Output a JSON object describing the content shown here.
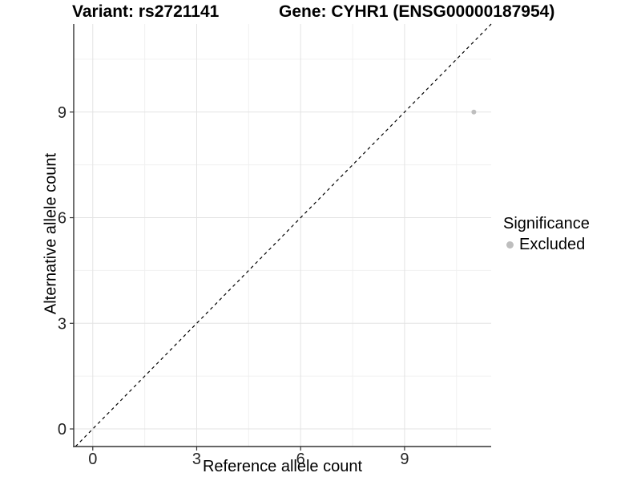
{
  "header": {
    "variant_title": "Variant: rs2721141",
    "gene_title": "Gene: CYHR1 (ENSG00000187954)"
  },
  "legend": {
    "title": "Significance",
    "items": [
      {
        "label": "Excluded",
        "color": "#bebebe"
      }
    ]
  },
  "chart_data": {
    "type": "scatter",
    "title": "",
    "xlabel": "Reference allele count",
    "ylabel": "Alternative allele count",
    "xlim": [
      -0.55,
      11.5
    ],
    "ylim": [
      -0.5,
      11.5
    ],
    "xticks": [
      0,
      3,
      6,
      9
    ],
    "yticks": [
      0,
      3,
      6,
      9
    ],
    "xticks_minor": [
      1.5,
      4.5,
      7.5,
      10.5
    ],
    "yticks_minor": [
      1.5,
      4.5,
      7.5,
      10.5
    ],
    "grid": "major+minor",
    "legend_position": "right",
    "series": [
      {
        "name": "Excluded",
        "color": "#bebebe",
        "points": [
          {
            "x": 11,
            "y": 9
          }
        ]
      }
    ],
    "identity_line": {
      "style": "dashed",
      "from": [
        -0.5,
        -0.5
      ],
      "to": [
        11.5,
        11.5
      ],
      "color": "#000000"
    }
  },
  "colors": {
    "background": "#ffffff",
    "grid_major": "#e3e3e3",
    "grid_minor": "#f0f0f0",
    "axis_line": "#333333",
    "tick_mark": "#333333",
    "tick_label": "#262626",
    "point": "#bebebe"
  }
}
